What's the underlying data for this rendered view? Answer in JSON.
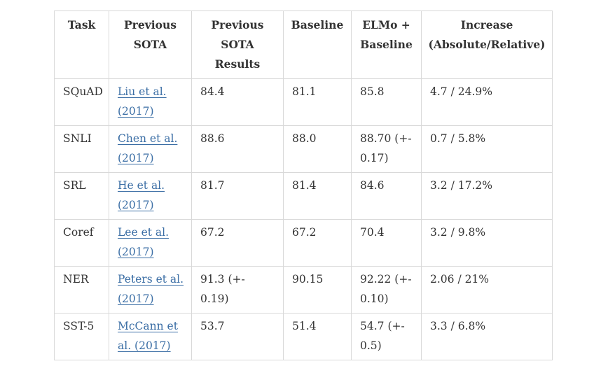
{
  "table": {
    "headers": [
      "Task",
      "Previous SOTA",
      "Previous SOTA Results",
      "Baseline",
      "ELMo + Baseline",
      "Increase (Absolute/Relative)"
    ],
    "rows": [
      {
        "task": "SQuAD",
        "prev_sota": "Liu et al. (2017)",
        "prev_results": "84.4",
        "baseline": "81.1",
        "elmo": "85.8",
        "increase": "4.7 / 24.9%"
      },
      {
        "task": "SNLI",
        "prev_sota": "Chen et al. (2017)",
        "prev_results": "88.6",
        "baseline": "88.0",
        "elmo": "88.70 (+- 0.17)",
        "increase": "0.7 / 5.8%"
      },
      {
        "task": "SRL",
        "prev_sota": "He et al. (2017)",
        "prev_results": "81.7",
        "baseline": "81.4",
        "elmo": "84.6",
        "increase": "3.2 / 17.2%"
      },
      {
        "task": "Coref",
        "prev_sota": "Lee et al. (2017)",
        "prev_results": "67.2",
        "baseline": "67.2",
        "elmo": "70.4",
        "increase": "3.2 / 9.8%"
      },
      {
        "task": "NER",
        "prev_sota": "Peters et al. (2017)",
        "prev_results": "91.3 (+- 0.19)",
        "baseline": "90.15",
        "elmo": "92.22 (+- 0.10)",
        "increase": "2.06 / 21%"
      },
      {
        "task": "SST-5",
        "prev_sota": "McCann et al. (2017)",
        "prev_results": "53.7",
        "baseline": "51.4",
        "elmo": "54.7 (+- 0.5)",
        "increase": "3.3 / 6.8%"
      }
    ]
  }
}
